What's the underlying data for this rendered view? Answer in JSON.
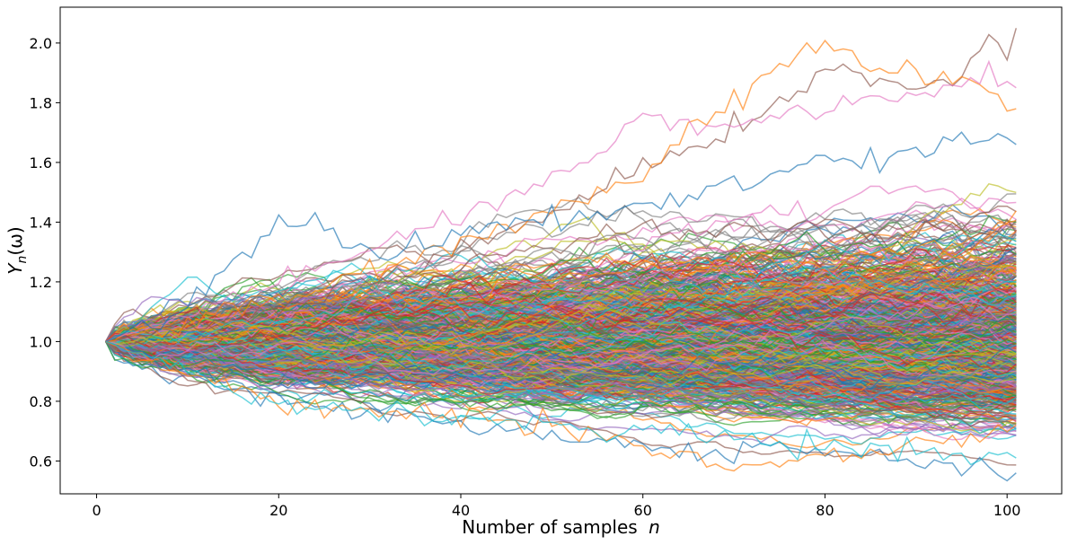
{
  "chart_data": {
    "type": "line",
    "title": "",
    "xlabel": "Number of samples",
    "xlabel_var": "n",
    "ylabel_base": "Y",
    "ylabel_sub": "n",
    "ylabel_arg": "(ω)",
    "xlim": [
      -4,
      106
    ],
    "ylim": [
      0.49,
      2.12
    ],
    "xticks": [
      0,
      20,
      40,
      60,
      80,
      100
    ],
    "xtick_labels": [
      "0",
      "20",
      "40",
      "60",
      "80",
      "100"
    ],
    "yticks": [
      0.6,
      0.8,
      1.0,
      1.2,
      1.4,
      1.6,
      1.8,
      2.0
    ],
    "ytick_labels": [
      "0.6",
      "0.8",
      "1.0",
      "1.2",
      "1.4",
      "1.6",
      "1.8",
      "2.0"
    ],
    "grid": false,
    "legend": "none",
    "series_count": 1000,
    "x_start": 1,
    "x_end": 101,
    "start_value": 1.0,
    "step_volatility": 0.0145,
    "line_alpha": 0.65,
    "colors": [
      "#1f77b4",
      "#ff7f0e",
      "#2ca02c",
      "#d62728",
      "#9467bd",
      "#8c564b",
      "#e377c2",
      "#7f7f7f",
      "#bcbd22",
      "#17becf"
    ],
    "highlight_series": [
      {
        "color": "#8c564b",
        "x": [
          1,
          20,
          40,
          60,
          70,
          80,
          90,
          95,
          98,
          100,
          101
        ],
        "y": [
          1.0,
          1.12,
          1.3,
          1.58,
          1.72,
          1.9,
          1.84,
          1.9,
          2.02,
          1.98,
          2.05
        ]
      },
      {
        "color": "#ff7f0e",
        "x": [
          1,
          20,
          40,
          60,
          65,
          70,
          75,
          80,
          85,
          90,
          95,
          100,
          101
        ],
        "y": [
          1.0,
          1.15,
          1.32,
          1.56,
          1.7,
          1.8,
          1.92,
          2.01,
          1.9,
          1.88,
          1.9,
          1.78,
          1.78
        ]
      },
      {
        "color": "#e377c2",
        "x": [
          1,
          20,
          40,
          55,
          60,
          65,
          70,
          80,
          90,
          100,
          101
        ],
        "y": [
          1.0,
          1.2,
          1.42,
          1.62,
          1.77,
          1.7,
          1.72,
          1.78,
          1.82,
          1.88,
          1.85
        ]
      },
      {
        "color": "#1f77b4",
        "x": [
          1,
          10,
          20,
          25,
          30,
          40,
          60,
          80,
          100,
          101
        ],
        "y": [
          1.0,
          1.12,
          1.4,
          1.36,
          1.3,
          1.35,
          1.45,
          1.6,
          1.68,
          1.66
        ]
      },
      {
        "color": "#1f77b4",
        "x": [
          1,
          20,
          40,
          60,
          65,
          70,
          80,
          90,
          100,
          101
        ],
        "y": [
          1.0,
          0.8,
          0.72,
          0.65,
          0.62,
          0.63,
          0.65,
          0.6,
          0.56,
          0.56
        ]
      },
      {
        "color": "#ff7f0e",
        "x": [
          1,
          20,
          40,
          50,
          60,
          65,
          70,
          75,
          80,
          90,
          100,
          101
        ],
        "y": [
          1.0,
          0.8,
          0.75,
          0.7,
          0.65,
          0.61,
          0.6,
          0.6,
          0.62,
          0.66,
          0.7,
          0.72
        ]
      },
      {
        "color": "#17becf",
        "x": [
          1,
          20,
          40,
          60,
          80,
          90,
          95,
          100,
          101
        ],
        "y": [
          1.0,
          0.79,
          0.74,
          0.7,
          0.66,
          0.63,
          0.62,
          0.62,
          0.61
        ]
      }
    ]
  }
}
